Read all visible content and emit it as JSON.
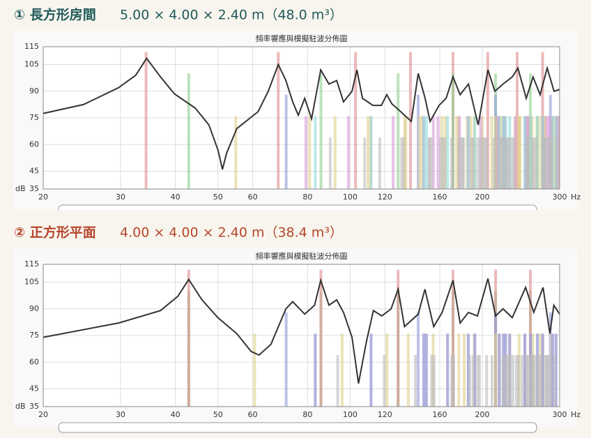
{
  "chart_data": [
    {
      "type": "line",
      "heading": "① 長方形房間",
      "subtitle": "5.00 × 4.00 × 2.40 m（48.0 m³）",
      "heading_color": "#1f5a5a",
      "title": "頻率響應與模擬駐波分佈圖",
      "xlabel": "Hz",
      "ylabel": "dB",
      "xscale": "log",
      "xlim": [
        20,
        300
      ],
      "xticks": [
        20,
        30,
        40,
        50,
        60,
        80,
        100,
        120,
        160,
        200,
        300
      ],
      "ylim": [
        35,
        115
      ],
      "yticks": [
        35,
        45,
        60,
        75,
        90,
        105,
        115
      ],
      "grid": true,
      "series": [
        {
          "color": "#333333",
          "x": [
            20,
            24.7,
            29.7,
            32.5,
            34.4,
            37.0,
            39.8,
            44.4,
            47.7,
            50.0,
            51.2,
            52.3,
            55.2,
            61.7,
            65.1,
            68.6,
            71.4,
            74.0,
            76.2,
            78.8,
            81.7,
            85.7,
            89.5,
            93.2,
            96.6,
            101,
            103.6,
            106.7,
            112.7,
            117.8,
            121.2,
            124.4,
            130.4,
            137.8,
            142.9,
            148.2,
            152.1,
            159.4,
            165.4,
            171.5,
            178,
            186,
            195.7,
            206,
            213.6,
            223,
            234,
            241,
            251.8,
            261,
            270.8,
            281,
            291.4,
            300
          ],
          "values": [
            77.5,
            82.5,
            92,
            99,
            108.5,
            98,
            88.5,
            80.5,
            71,
            57,
            46,
            55,
            69,
            78.5,
            90,
            105,
            96,
            84,
            76.5,
            86,
            74.5,
            102,
            94,
            96,
            84,
            90,
            102,
            86,
            82,
            82,
            88,
            83,
            78.5,
            73,
            100,
            86,
            73,
            82,
            86,
            98,
            88,
            94,
            71,
            102,
            90,
            94,
            98,
            103,
            86,
            98,
            88,
            103,
            90,
            91
          ]
        }
      ],
      "modes": [
        {
          "color": "#e08a8a",
          "level": 112,
          "x": [
            34.3,
            68.6,
            102.9,
            137.2,
            171.5,
            205.8,
            240.1,
            274.4
          ]
        },
        {
          "color": "#8fcf8f",
          "level": 100,
          "x": [
            42.9,
            85.8,
            128.6,
            171.5,
            214.4,
            257.3
          ]
        },
        {
          "color": "#8f9ad8",
          "level": 88,
          "x": [
            71.5,
            142.9,
            214.4,
            285.8
          ]
        },
        {
          "color": "#e0cf8a",
          "level": 76,
          "x": [
            54.9,
            92.4,
            133.1,
            174.9,
            217.1,
            259.6,
            80.9,
            109.8,
            145.8,
            184.7,
            225.1,
            266.2,
            111.5,
            133.9,
            164.7,
            200,
            237.8,
            277.1,
            143.7,
            161.8,
            188.1,
            219.6,
            254.5,
            291.5,
            176.8,
            191.7,
            214.4,
            242.5,
            274.5,
            210.2,
            222.9,
            242.7,
            267.9,
            297.2,
            243.9,
            255.0,
            272.4,
            295.1,
            277.7,
            287.5
          ]
        },
        {
          "color": "#d79ad8",
          "level": 76,
          "x": [
            79.3,
            147.0,
            217.1,
            287.9,
            99.1,
            158.5,
            225.1,
            294.9,
            125.3,
            177.4,
            237.8,
            154.7,
            198.1,
            254.5,
            185.8,
            223.5,
            274.5,
            217.9,
            251.6,
            297.2,
            250.5,
            280.0,
            283.6
          ]
        },
        {
          "color": "#8fd8d8",
          "level": 76,
          "x": [
            83.3,
            149.2,
            218.6,
            289.1,
            111.6,
            166.7,
            230.9,
            147.1,
            192.3,
            250.0,
            185.8,
            223.3,
            274.5,
            226.0,
            257.7,
            267.0,
            294.3
          ]
        },
        {
          "color": "#bdbdbd",
          "level": 64,
          "x": [
            90.1,
            107.9,
            116.8,
            132.4,
            131.0,
            151.1,
            160.5,
            151.8,
            153.1,
            164.2,
            162.4,
            170.2,
            190.7,
            179.6,
            176.9,
            188.9,
            181.3,
            180.2,
            201.2,
            198.1,
            204.6,
            222.0,
            212.4,
            195.3,
            202.7,
            221.3,
            226.0,
            236.2,
            231.0,
            234.1,
            218.1,
            227.3,
            229.1,
            254.2,
            253.0,
            252.8,
            259.9,
            264.8,
            277.3,
            286.8,
            287.6,
            275.7,
            262.0,
            276.7,
            281.6,
            277.4,
            283.7,
            296.2
          ]
        }
      ]
    },
    {
      "type": "line",
      "heading": "② 正方形平面",
      "subtitle": "4.00 × 4.00 × 2.40 m（38.4 m³）",
      "heading_color": "#b5452a",
      "title": "頻率響應與模擬駐波分佈圖",
      "xlabel": "Hz",
      "ylabel": "dB",
      "xscale": "log",
      "xlim": [
        20,
        300
      ],
      "xticks": [
        20,
        30,
        40,
        50,
        60,
        80,
        100,
        120,
        160,
        200,
        300
      ],
      "ylim": [
        35,
        115
      ],
      "yticks": [
        35,
        45,
        60,
        75,
        90,
        105,
        115
      ],
      "grid": true,
      "series": [
        {
          "color": "#333333",
          "x": [
            20,
            29.7,
            37.0,
            40.5,
            42.9,
            46,
            50,
            55.2,
            59.5,
            62,
            66,
            71.4,
            74,
            78.8,
            83,
            85.7,
            89.5,
            93.2,
            96.6,
            101,
            104.5,
            109,
            113,
            118,
            124,
            128.6,
            133,
            142.9,
            148,
            155,
            162,
            171.5,
            178,
            186,
            195,
            206,
            214.4,
            223,
            234,
            251,
            262,
            275,
            285,
            291,
            300
          ],
          "values": [
            74,
            82,
            89,
            97,
            106.5,
            95,
            85,
            76,
            66,
            64,
            70,
            90,
            94,
            87,
            92,
            106,
            92,
            95,
            88,
            74,
            48,
            72,
            89,
            86,
            90,
            101,
            80,
            87,
            101,
            80,
            88,
            106,
            82,
            88,
            86,
            107,
            86,
            90,
            85,
            102,
            88,
            102,
            76,
            92,
            87
          ]
        }
      ],
      "modes": [
        {
          "color": "#8fcf8f",
          "level": 100,
          "x": [
            42.9,
            85.8,
            128.6,
            171.5,
            214.4,
            257.3
          ]
        },
        {
          "color": "#e08a8a",
          "level": 112,
          "x": [
            42.9,
            85.8,
            128.6,
            171.5,
            214.4,
            257.3
          ]
        },
        {
          "color": "#8f9ad8",
          "level": 88,
          "x": [
            71.5,
            142.9,
            214.4,
            285.8
          ]
        },
        {
          "color": "#e0cf8a",
          "level": 76,
          "x": [
            60.6,
            95.9,
            121.3,
            135.6,
            154.6,
            181.9,
            176.8,
            191.7,
            214.4,
            218.6,
            242.5,
            230.9,
            250.0,
            260.8,
            274.5,
            271.2,
            287.6
          ]
        },
        {
          "color": "#d79ad8",
          "level": 76,
          "x": [
            83.3,
            149.2,
            218.6,
            289.1,
            111.6,
            166.7,
            230.9,
            147.1,
            192.3,
            250.0,
            185.8,
            223.3,
            274.5,
            226.0,
            257.7,
            267.0,
            294.3
          ]
        },
        {
          "color": "#8fa6d8",
          "level": 76,
          "x": [
            83.3,
            149.2,
            218.6,
            289.1,
            111.6,
            166.7,
            230.9,
            147.1,
            192.3,
            250.0,
            185.8,
            223.3,
            274.5,
            226.0,
            257.7,
            267.0,
            294.3
          ]
        },
        {
          "color": "#bdbdbd",
          "level": 64,
          "x": [
            93.7,
            119.6,
            140.8,
            155.3,
            153.3,
            170.3,
            172.1,
            190.7,
            187.4,
            195.4,
            204.6,
            197.0,
            222.8,
            226.0,
            210.5,
            230.0,
            234.8,
            227.3,
            241.7,
            231.3,
            246.3,
            252.8,
            239.1,
            260.0,
            253.7,
            292.2,
            261.2,
            257.6,
            264.3,
            268.5,
            283.7,
            271.5,
            277.9,
            280.4,
            281.2
          ]
        }
      ]
    }
  ]
}
